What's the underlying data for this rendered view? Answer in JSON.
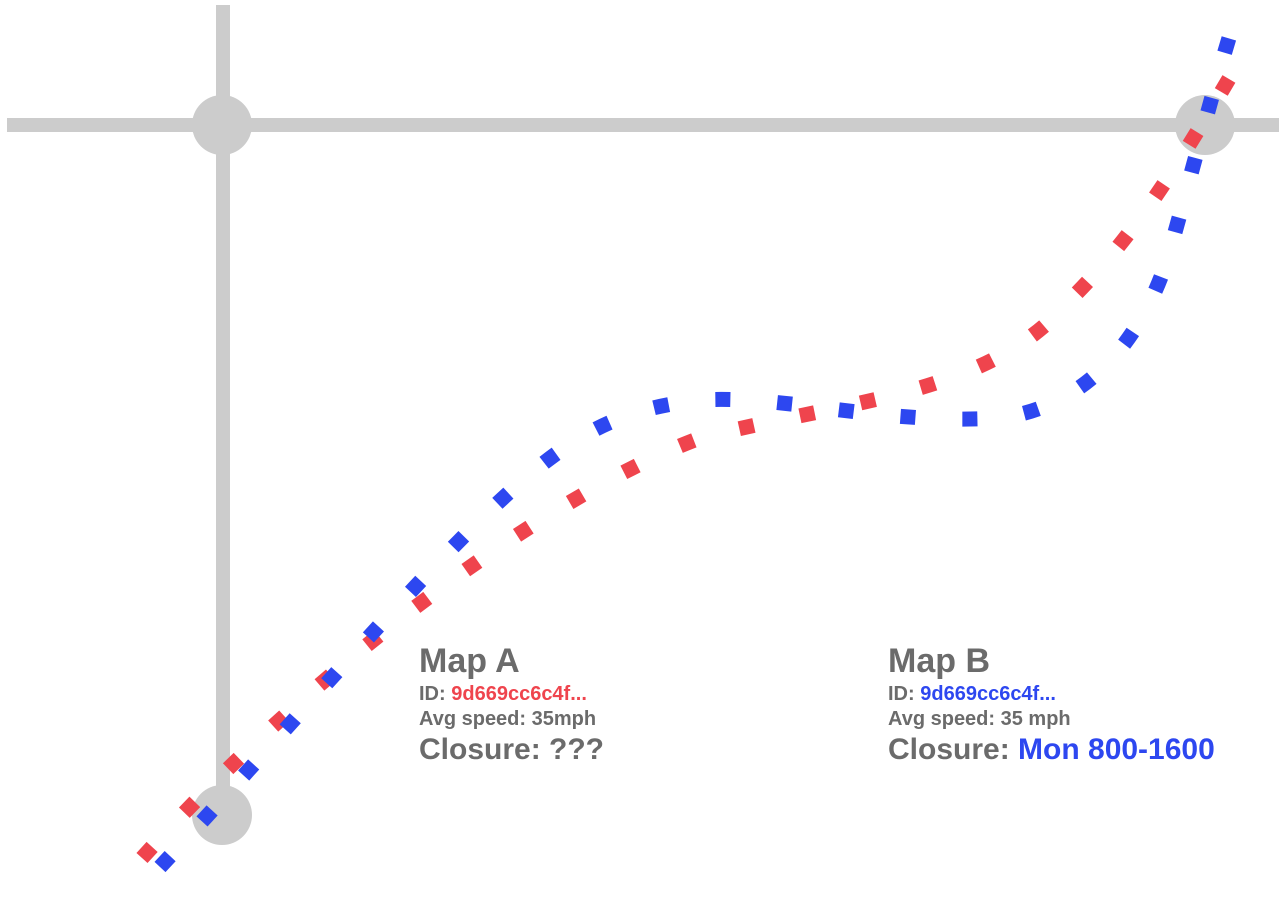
{
  "colors": {
    "road": "#cccccc",
    "text": "#6b6b6b",
    "map_a": "#ef444d",
    "map_b": "#2d47f0"
  },
  "map_a": {
    "title": "Map A",
    "id_label": "ID:",
    "id_value": "9d669cc6c4f...",
    "speed_label": "Avg speed: 35mph",
    "closure_label": "Closure:",
    "closure_value": "???"
  },
  "map_b": {
    "title": "Map B",
    "id_label": "ID:",
    "id_value": "9d669cc6c4f...",
    "speed_label": "Avg speed: 35 mph",
    "closure_label": "Closure:",
    "closure_value": "Mon 800-1600"
  }
}
